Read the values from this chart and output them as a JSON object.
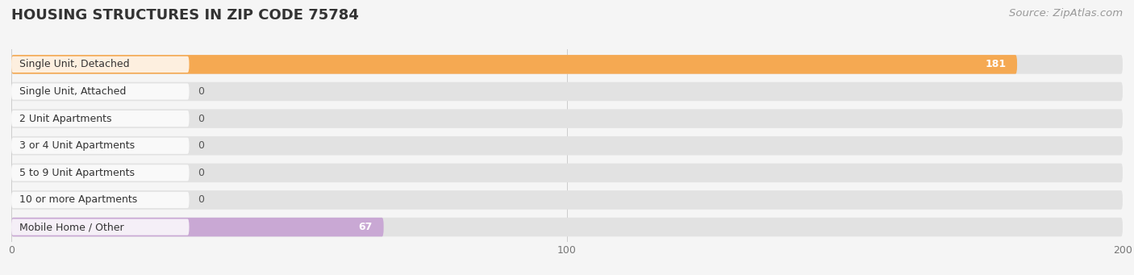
{
  "title": "HOUSING STRUCTURES IN ZIP CODE 75784",
  "source": "Source: ZipAtlas.com",
  "categories": [
    "Single Unit, Detached",
    "Single Unit, Attached",
    "2 Unit Apartments",
    "3 or 4 Unit Apartments",
    "5 to 9 Unit Apartments",
    "10 or more Apartments",
    "Mobile Home / Other"
  ],
  "values": [
    181,
    0,
    0,
    0,
    0,
    0,
    67
  ],
  "bar_colors": [
    "#f5a952",
    "#f0a0a8",
    "#a8c4e0",
    "#a8c4e0",
    "#a8c4e0",
    "#a8c4e0",
    "#c9a8d4"
  ],
  "background_color": "#f5f5f5",
  "bar_background_color": "#e2e2e2",
  "xlim": [
    0,
    200
  ],
  "xticks": [
    0,
    100,
    200
  ],
  "title_fontsize": 13,
  "label_fontsize": 9,
  "value_fontsize": 9,
  "source_fontsize": 9.5
}
